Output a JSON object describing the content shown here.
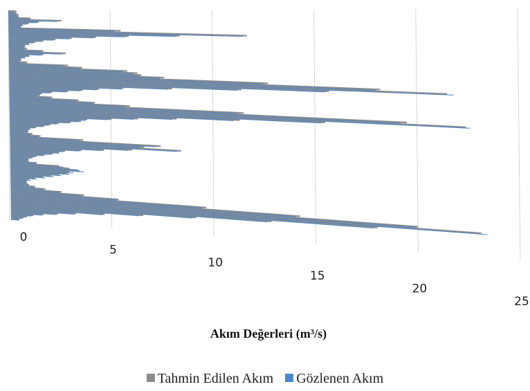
{
  "chart_data": {
    "type": "bar",
    "orientation": "horizontal",
    "perspective": "3d",
    "title": "",
    "xlabel": "Akım Değerleri (m³/s)",
    "ylabel": "",
    "xlim": [
      0,
      25
    ],
    "xticks": [
      "0",
      "5",
      "10",
      "15",
      "20",
      "25"
    ],
    "grid": true,
    "legend_position": "bottom",
    "colors": {
      "Tahmin Edilen Akım": "#8c8c8c",
      "Gözlenen Akım": "#4f86c6"
    },
    "series": [
      {
        "name": "Tahmin Edilen Akım",
        "values": [
          0.4,
          0.4,
          0.5,
          0.5,
          1.1,
          2.6,
          1.5,
          1.0,
          0.7,
          0.6,
          5.5,
          11.7,
          8.4,
          5.9,
          4.3,
          3.1,
          2.3,
          1.7,
          1.3,
          1.0,
          0.8,
          0.8,
          0.9,
          1.7,
          2.8,
          1.7,
          1.0,
          0.8,
          0.6,
          0.6,
          0.9,
          2.9,
          3.6,
          5.8,
          6.3,
          6.5,
          7.6,
          12.7,
          18.2,
          21.5,
          15.7,
          11.4,
          8.0,
          5.6,
          4.4,
          3.6,
          2.9,
          2.1,
          1.6,
          1.5,
          2.1,
          3.4,
          4.2,
          5.9,
          11.5,
          19.5,
          22.4,
          15.5,
          11.3,
          8.2,
          6.3,
          5.0,
          3.8,
          3.5,
          3.0,
          2.4,
          2.0,
          1.7,
          1.3,
          1.0,
          0.9,
          0.9,
          1.1,
          1.5,
          3.6,
          7.4,
          6.6,
          8.4,
          6.0,
          4.6,
          3.5,
          2.7,
          2.4,
          2.1,
          1.7,
          1.3,
          1.1,
          0.9,
          0.9,
          1.3,
          2.4,
          2.9,
          3.4,
          2.9,
          2.8,
          2.4,
          2.0,
          1.6,
          1.2,
          0.9,
          0.8,
          0.8,
          0.9,
          1.2,
          1.7,
          2.5,
          3.6,
          5.3,
          9.6,
          14.2,
          20.0,
          23.1,
          18.0,
          12.8,
          9.1,
          6.5,
          4.6,
          3.2,
          2.3,
          1.6,
          1.1,
          0.8,
          0.6,
          0.4
        ],
        "note": ""
      },
      {
        "name": "Gözlenen Akım",
        "values": [
          0.3,
          0.4,
          0.4,
          0.5,
          1.0,
          2.4,
          1.4,
          0.9,
          0.7,
          0.6,
          5.2,
          11.5,
          8.2,
          5.7,
          4.2,
          3.0,
          2.2,
          1.6,
          1.2,
          1.0,
          0.8,
          0.7,
          0.8,
          1.6,
          2.6,
          1.6,
          1.0,
          0.8,
          0.6,
          0.5,
          0.8,
          2.7,
          3.5,
          5.6,
          6.1,
          6.4,
          7.4,
          12.5,
          18.0,
          21.8,
          15.5,
          11.2,
          7.8,
          5.5,
          4.3,
          3.5,
          2.8,
          2.0,
          1.5,
          1.4,
          2.0,
          3.3,
          4.1,
          5.7,
          11.2,
          19.2,
          22.6,
          15.3,
          11.0,
          8.0,
          6.1,
          4.8,
          3.7,
          3.4,
          2.9,
          2.3,
          1.9,
          1.6,
          1.2,
          1.0,
          0.9,
          0.8,
          1.0,
          1.4,
          3.4,
          7.2,
          6.4,
          8.2,
          5.8,
          4.5,
          3.4,
          2.6,
          2.4,
          2.0,
          1.6,
          1.2,
          1.0,
          0.9,
          0.9,
          1.3,
          2.6,
          3.3,
          3.6,
          3.1,
          2.9,
          2.5,
          2.1,
          1.7,
          1.3,
          1.0,
          0.8,
          0.8,
          0.9,
          1.2,
          1.6,
          2.4,
          3.5,
          5.2,
          9.4,
          14.0,
          19.9,
          23.4,
          17.8,
          12.6,
          8.9,
          6.3,
          4.5,
          3.1,
          2.2,
          1.5,
          1.0,
          0.7,
          0.5,
          0.4
        ],
        "note": ""
      }
    ]
  },
  "legend": {
    "items": [
      {
        "label": "Tahmin Edilen Akım",
        "color": "#8c8c8c"
      },
      {
        "label": "Gözlenen Akım",
        "color": "#4f86c6"
      }
    ]
  }
}
